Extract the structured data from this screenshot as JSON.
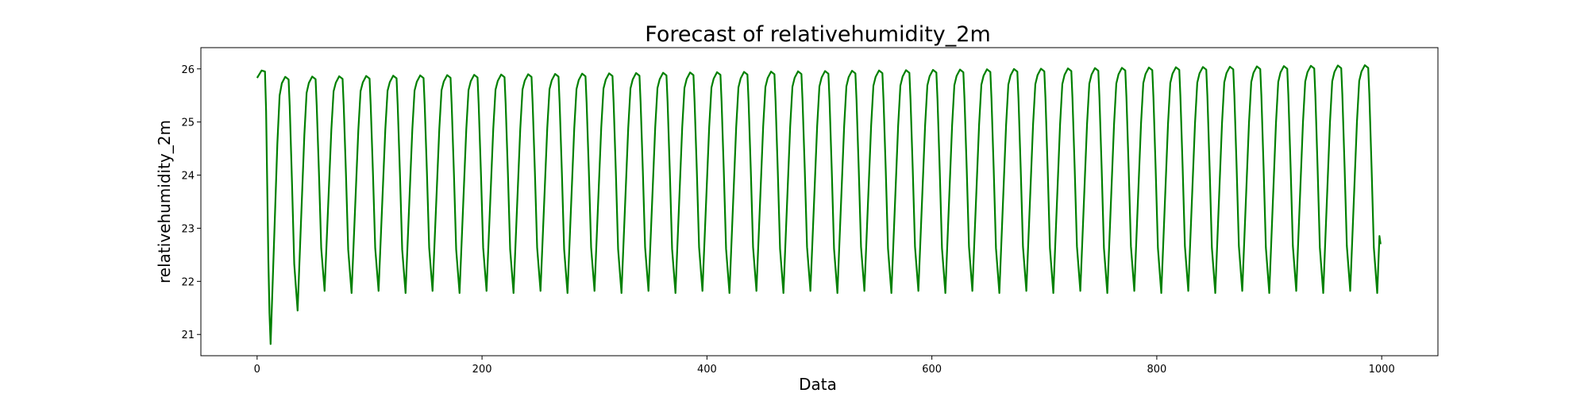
{
  "chart_data": {
    "type": "line",
    "title": "Forecast of relativehumidity_2m",
    "xlabel": "Data",
    "ylabel": "relativehumidity_2m",
    "xlim": [
      -50,
      1050
    ],
    "ylim": [
      20.6,
      26.4
    ],
    "xticks": [
      0,
      200,
      400,
      600,
      800,
      1000
    ],
    "yticks": [
      21,
      22,
      23,
      24,
      25,
      26
    ],
    "grid": false,
    "legend": "none",
    "colors": {
      "line": "#008000",
      "axes": "#000000",
      "background": "#ffffff"
    },
    "series": [
      {
        "x_start": 0,
        "x_end": 999,
        "period": 24,
        "first_trough": {
          "x": 12,
          "y": 20.82
        },
        "second_trough": {
          "x": 37,
          "y": 21.45
        },
        "trough_range": [
          21.78,
          21.82
        ],
        "peak_range": [
          25.85,
          26.08
        ],
        "last_value": 22.7
      }
    ]
  }
}
